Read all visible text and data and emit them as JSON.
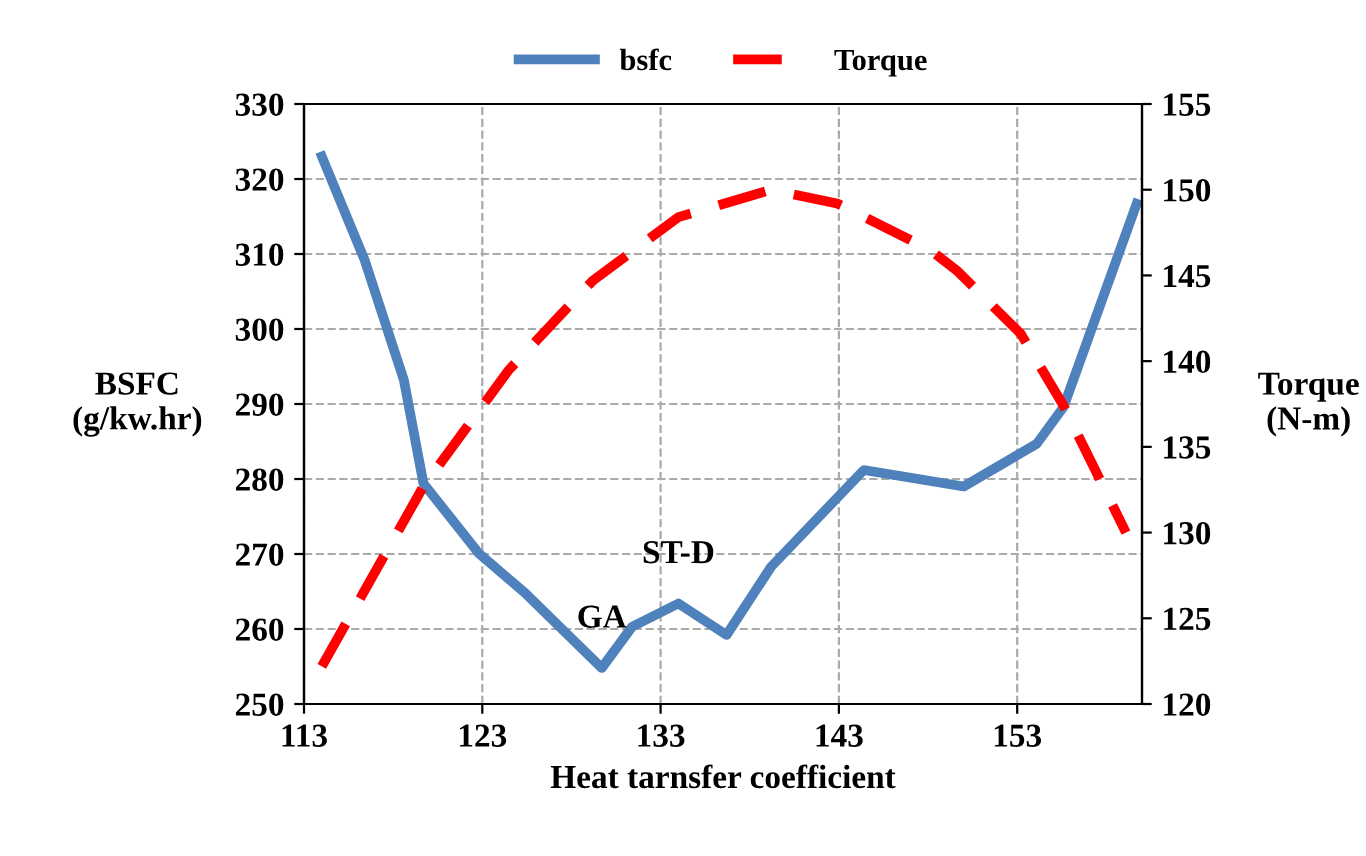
{
  "chart_data": {
    "type": "line",
    "xlabel": "Heat tarnsfer coefficient",
    "ylabel": "BSFC\n(g/kw.hr)",
    "y2label": "Torque\n(N-m)",
    "xlim": [
      113,
      160
    ],
    "xticks": [
      113,
      123,
      133,
      143,
      153
    ],
    "ylim": [
      250,
      330
    ],
    "yticks": [
      250,
      260,
      270,
      280,
      290,
      300,
      310,
      320,
      330
    ],
    "y2lim": [
      120,
      155
    ],
    "y2ticks": [
      120,
      125,
      130,
      135,
      140,
      145,
      150,
      155
    ],
    "grid": true,
    "legend": "top",
    "series": [
      {
        "name": "bsfc",
        "color": "#4f81bd",
        "line_style": "solid",
        "x": [
          114.0,
          116.4,
          118.6,
          119.7,
          122.8,
          125.4,
          129.7,
          131.4,
          134.0,
          136.7,
          139.2,
          144.4,
          150.0,
          154.1,
          155.6,
          159.7
        ],
        "values": [
          323,
          309.2,
          293.2,
          279.4,
          270.1,
          264.8,
          254.8,
          260.3,
          263.4,
          259.2,
          268.3,
          281.2,
          279.0,
          284.7,
          289.6,
          316.7
        ]
      },
      {
        "name": "Torque",
        "color": "#ff0000",
        "line_style": "dashed",
        "axis": "y2",
        "x": [
          114.0,
          119.7,
          124.5,
          129.2,
          134.0,
          139.2,
          142.9,
          148.1,
          149.6,
          153.2,
          155.6,
          159.1
        ],
        "values": [
          122.2,
          132.7,
          139.5,
          144.7,
          148.4,
          150.0,
          149.2,
          146.5,
          145.3,
          141.6,
          137.4,
          130.0
        ]
      }
    ],
    "annotations": [
      {
        "text": "GA",
        "x": 129.7,
        "y": 254.8
      },
      {
        "text": "ST-D",
        "x": 134.0,
        "y": 263.4
      }
    ]
  }
}
